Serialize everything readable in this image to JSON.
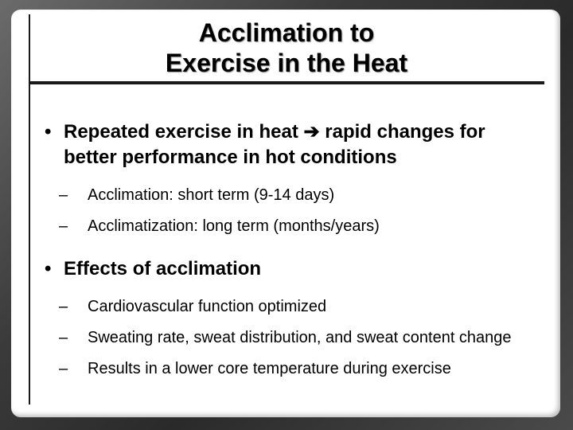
{
  "slide": {
    "title_line1": "Acclimation to",
    "title_line2": "Exercise in the Heat",
    "bullets": [
      {
        "text_a": "Repeated exercise in heat",
        "arrow": "➔",
        "text_b": "rapid changes for better performance in hot conditions",
        "subs": [
          "Acclimation: short term (9-14 days)",
          "Acclimatization: long term (months/years)"
        ]
      },
      {
        "text": "Effects of acclimation",
        "subs": [
          "Cardiovascular function optimized",
          "Sweating rate, sweat distribution, and sweat content change",
          "Results in a lower core temperature during exercise"
        ]
      }
    ],
    "bullet_glyph": "•",
    "dash_glyph": "–"
  }
}
